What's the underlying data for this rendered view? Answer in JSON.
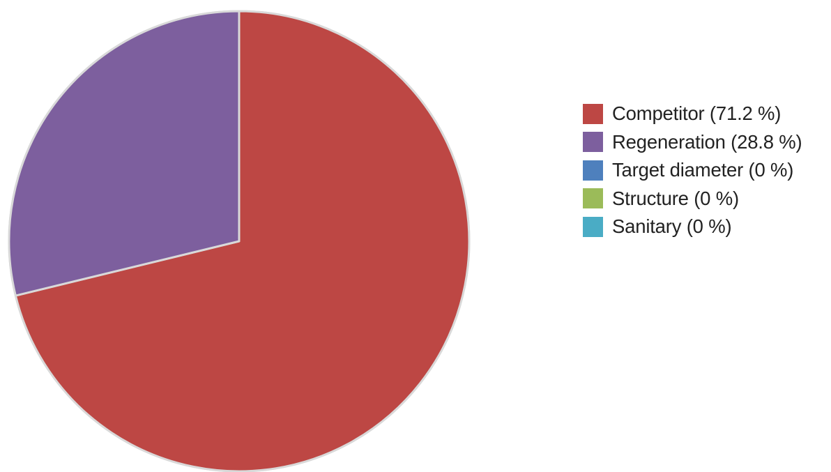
{
  "chart_data": {
    "type": "pie",
    "start_angle_deg": 0,
    "direction": "clockwise",
    "legend_position": "right",
    "series": [
      {
        "name": "Competitor",
        "value": 71.2,
        "legend_label": "Competitor (71.2 %)",
        "color": "#bd4744"
      },
      {
        "name": "Regeneration",
        "value": 28.8,
        "legend_label": "Regeneration (28.8 %)",
        "color": "#7d5f9e"
      },
      {
        "name": "Target diameter",
        "value": 0,
        "legend_label": "Target diameter (0 %)",
        "color": "#4e80bd"
      },
      {
        "name": "Structure",
        "value": 0,
        "legend_label": "Structure (0 %)",
        "color": "#9bbb59"
      },
      {
        "name": "Sanitary",
        "value": 0,
        "legend_label": "Sanitary (0 %)",
        "color": "#4aacc5"
      }
    ],
    "outline_color": "#d9d9d9"
  }
}
